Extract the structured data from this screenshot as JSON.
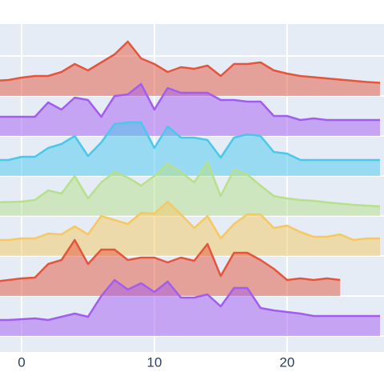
{
  "chart_data": {
    "type": "area",
    "x": [
      -2,
      -1,
      0,
      1,
      2,
      3,
      4,
      5,
      6,
      7,
      8,
      9,
      10,
      11,
      12,
      13,
      14,
      15,
      16,
      17,
      18,
      19,
      20,
      21,
      22,
      23,
      24,
      25,
      26,
      27
    ],
    "series": [
      {
        "color": "#e4553b",
        "values": [
          6.38,
          6.4,
          6.46,
          6.5,
          6.5,
          6.6,
          6.8,
          6.64,
          6.84,
          7.04,
          7.36,
          6.94,
          6.8,
          6.6,
          6.72,
          6.68,
          6.76,
          6.5,
          6.8,
          6.8,
          6.84,
          6.64,
          6.56,
          6.5,
          6.47,
          6.44,
          6.41,
          6.38,
          6.35,
          6.33
        ]
      },
      {
        "color": "#a35cf0",
        "values": [
          5.48,
          5.48,
          5.48,
          5.48,
          5.84,
          5.66,
          5.96,
          5.9,
          5.48,
          6.0,
          6.04,
          6.3,
          5.66,
          6.2,
          6.08,
          6.08,
          6.08,
          5.9,
          5.9,
          5.86,
          5.86,
          5.5,
          5.5,
          5.4,
          5.44,
          5.4,
          5.4,
          5.4,
          5.4,
          5.4
        ]
      },
      {
        "color": "#4ac8ec",
        "values": [
          4.4,
          4.4,
          4.48,
          4.48,
          4.7,
          4.8,
          5.0,
          4.5,
          4.84,
          5.3,
          5.34,
          5.34,
          4.7,
          5.24,
          4.96,
          4.96,
          4.9,
          4.46,
          4.96,
          5.04,
          5.0,
          4.6,
          4.56,
          4.4,
          4.4,
          4.4,
          4.4,
          4.4,
          4.4,
          4.4
        ]
      },
      {
        "color": "#b8e08a",
        "values": [
          3.34,
          3.35,
          3.36,
          3.4,
          3.64,
          3.56,
          4.0,
          3.44,
          3.84,
          4.1,
          3.96,
          3.76,
          4.0,
          4.3,
          4.1,
          3.84,
          4.34,
          3.5,
          4.16,
          4.04,
          3.76,
          3.5,
          3.44,
          3.4,
          3.38,
          3.34,
          3.31,
          3.28,
          3.26,
          3.24
        ]
      },
      {
        "color": "#f6c85f",
        "values": [
          2.4,
          2.4,
          2.44,
          2.44,
          2.56,
          2.54,
          2.74,
          2.54,
          3.0,
          2.9,
          2.8,
          3.08,
          3.06,
          3.36,
          3.04,
          2.7,
          3.0,
          2.44,
          2.8,
          3.04,
          3.04,
          2.7,
          2.76,
          2.6,
          2.48,
          2.48,
          2.54,
          2.4,
          2.44,
          2.44
        ]
      },
      {
        "color": "#e4553b",
        "values": [
          1.36,
          1.4,
          1.44,
          1.46,
          1.8,
          1.9,
          2.4,
          1.8,
          2.16,
          2.16,
          1.9,
          1.96,
          1.96,
          1.84,
          1.96,
          1.88,
          2.3,
          1.5,
          2.08,
          2.08,
          1.9,
          1.68,
          1.4,
          1.44,
          1.4,
          1.44,
          1.4,
          null,
          null,
          null
        ]
      },
      {
        "color": "#a35cf0",
        "values": [
          0.4,
          0.4,
          0.42,
          0.44,
          0.4,
          0.48,
          0.56,
          0.48,
          1.0,
          1.4,
          1.16,
          1.32,
          1.1,
          1.36,
          0.96,
          0.96,
          1.04,
          0.74,
          1.2,
          1.2,
          0.7,
          0.64,
          0.6,
          0.56,
          0.5,
          0.5,
          0.5,
          0.5,
          0.5,
          0.5
        ]
      }
    ],
    "xlim": [
      -1.63,
      27.3
    ],
    "xticks": [
      0,
      10,
      20
    ],
    "ylim": [
      -0.4,
      7.8
    ],
    "yticks": [
      0,
      1,
      2,
      3,
      4,
      5,
      6,
      7
    ],
    "grid": true
  }
}
